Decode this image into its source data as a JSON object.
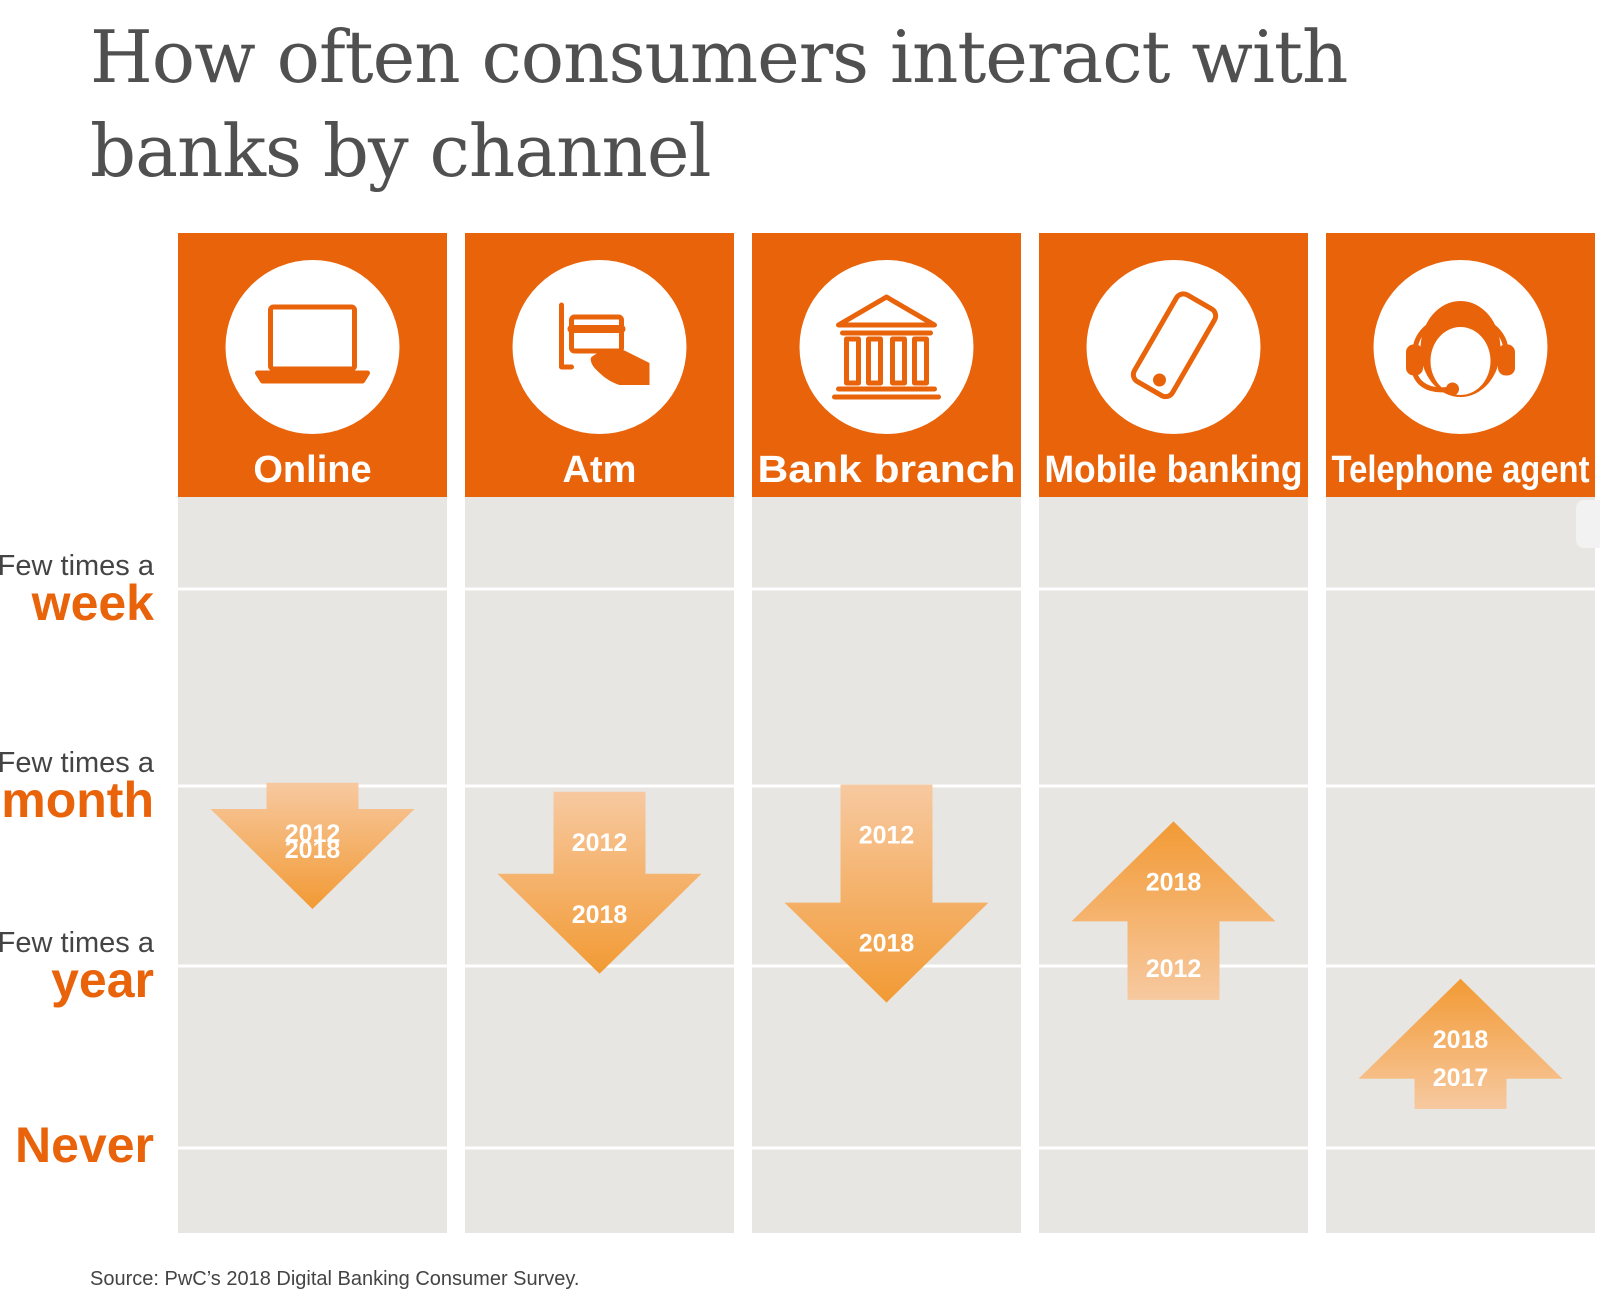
{
  "title": "How often consumers interact with banks by channel",
  "source": "Source: PwC’s 2018 Digital Banking Consumer Survey.",
  "colors": {
    "accent": "#e8630a",
    "panel": "#e8e6e2",
    "arrow_light": "#f7c9a0",
    "arrow_dark": "#f29a34"
  },
  "chart_data": {
    "type": "table",
    "levels": [
      {
        "key": "week",
        "prefix": "Few times a",
        "label": "week"
      },
      {
        "key": "month",
        "prefix": "Few times a",
        "label": "month"
      },
      {
        "key": "year",
        "prefix": "Few times a",
        "label": "year"
      },
      {
        "key": "never",
        "prefix": "",
        "label": "Never"
      }
    ],
    "channels": [
      {
        "name": "Online",
        "icon": "laptop-icon",
        "direction": "down",
        "from": {
          "year": "2012",
          "level": 1.26
        },
        "to": {
          "year": "2018",
          "level": 1.35
        }
      },
      {
        "name": "Atm",
        "icon": "atm-card-icon",
        "direction": "down",
        "from": {
          "year": "2012",
          "level": 1.31
        },
        "to": {
          "year": "2018",
          "level": 1.71
        }
      },
      {
        "name": "Bank branch",
        "icon": "bank-building-icon",
        "direction": "down",
        "from": {
          "year": "2012",
          "level": 1.27
        },
        "to": {
          "year": "2018",
          "level": 1.87
        }
      },
      {
        "name": "Mobile banking",
        "icon": "smartphone-icon",
        "direction": "up",
        "from": {
          "year": "2012",
          "level": 2.01
        },
        "to": {
          "year": "2018",
          "level": 1.53
        }
      },
      {
        "name": "Telephone agent",
        "icon": "headset-agent-icon",
        "direction": "up",
        "from": {
          "year": "2017",
          "level": 2.61
        },
        "to": {
          "year": "2018",
          "level": 2.4
        }
      }
    ]
  }
}
